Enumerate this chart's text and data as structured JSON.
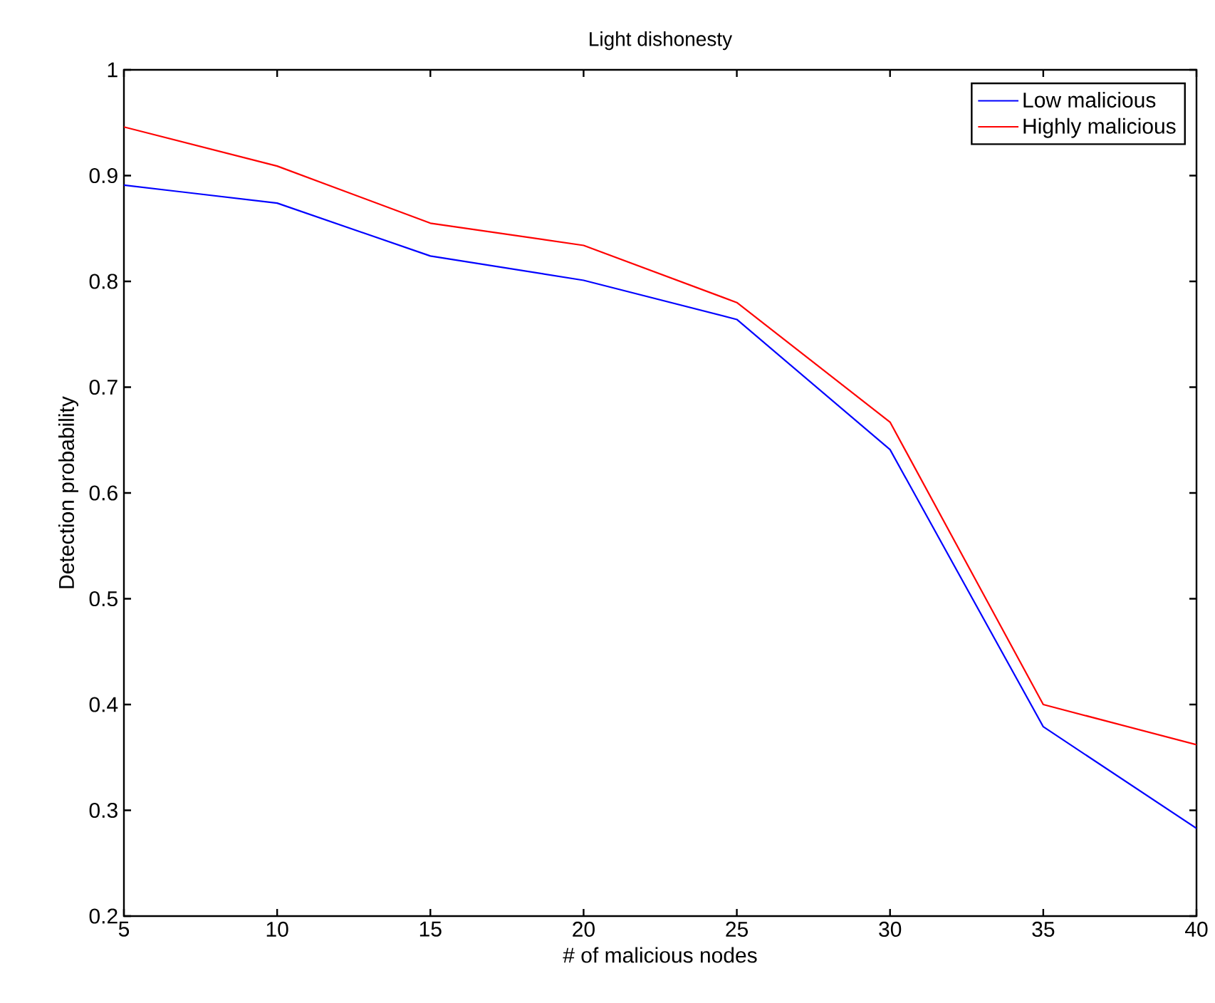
{
  "chart_data": {
    "type": "line",
    "title": "Light dishonesty",
    "xlabel": "# of malicious nodes",
    "ylabel": "Detection probability",
    "x": [
      5,
      10,
      15,
      20,
      25,
      30,
      35,
      40
    ],
    "series": [
      {
        "name": "Low malicious",
        "color": "#0000ff",
        "values": [
          0.891,
          0.874,
          0.824,
          0.801,
          0.764,
          0.641,
          0.379,
          0.283
        ]
      },
      {
        "name": "Highly malicious",
        "color": "#ff0000",
        "values": [
          0.946,
          0.909,
          0.855,
          0.834,
          0.78,
          0.667,
          0.4,
          0.362
        ]
      }
    ],
    "xlim": [
      5,
      40
    ],
    "ylim": [
      0.2,
      1
    ],
    "xticks": [
      5,
      10,
      15,
      20,
      25,
      30,
      35,
      40
    ],
    "yticks": [
      0.2,
      0.3,
      0.4,
      0.5,
      0.6,
      0.7,
      0.8,
      0.9,
      1
    ],
    "grid": false,
    "legend": "top right",
    "marker": "none",
    "line_style": "solid"
  }
}
